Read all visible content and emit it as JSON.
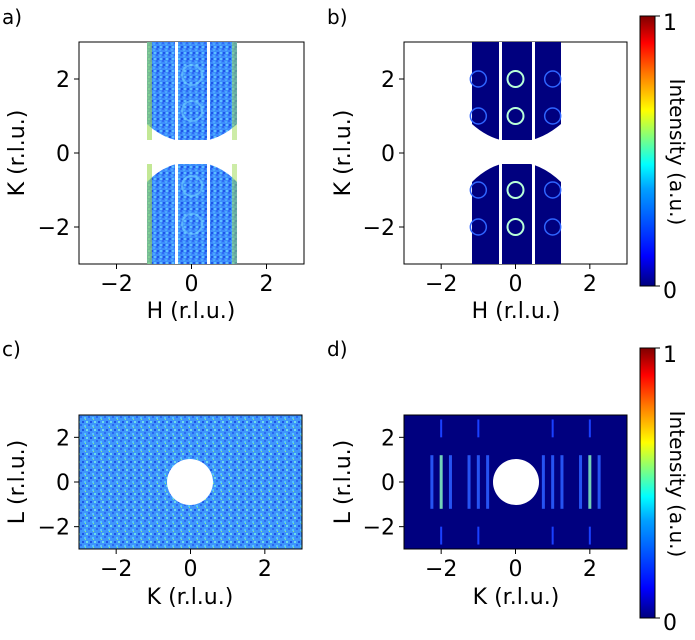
{
  "figure": {
    "colormap": "jet",
    "colormap_stops": [
      "#00007f",
      "#0000ff",
      "#007fff",
      "#00ffff",
      "#7fff7f",
      "#ffff00",
      "#ff7f00",
      "#ff0000",
      "#7f0000"
    ]
  },
  "chart_data": [
    {
      "panel_label": "a)",
      "type": "heatmap",
      "title": "",
      "xlabel": "H (r.l.u.)",
      "ylabel": "K (r.l.u.)",
      "xlim": [
        -3,
        3
      ],
      "ylim": [
        -3,
        3
      ],
      "xticks": [
        -2,
        0,
        2
      ],
      "yticks": [
        -2,
        0,
        2
      ],
      "x_tick_labels": [
        "−2",
        "0",
        "2"
      ],
      "y_tick_labels": [
        "−2",
        "0",
        "2"
      ],
      "data_region_h": [
        -1.2,
        1.2
      ],
      "description": "measured intensity, mostly low-medium (blue/cyan) with noise; gaps (white) near K=0"
    },
    {
      "panel_label": "b)",
      "type": "heatmap",
      "title": "",
      "xlabel": "H (r.l.u.)",
      "ylabel": "K (r.l.u.)",
      "xlim": [
        -3,
        3
      ],
      "ylim": [
        -3,
        3
      ],
      "xticks": [
        -2,
        0,
        2
      ],
      "yticks": [
        -2,
        0,
        2
      ],
      "x_tick_labels": [
        "−2",
        "0",
        "2"
      ],
      "y_tick_labels": [
        "−2",
        "0",
        "2"
      ],
      "data_region_h": [
        -1.2,
        1.2
      ],
      "ring_centers": [
        [
          -1,
          2
        ],
        [
          0,
          2
        ],
        [
          1,
          2
        ],
        [
          -1,
          1
        ],
        [
          0,
          1
        ],
        [
          1,
          1
        ],
        [
          -1,
          -1
        ],
        [
          0,
          -1
        ],
        [
          1,
          -1
        ],
        [
          -1,
          -2
        ],
        [
          0,
          -2
        ],
        [
          1,
          -2
        ]
      ],
      "description": "calculated intensity, dark blue background with ring features"
    },
    {
      "panel_label": "c)",
      "type": "heatmap",
      "title": "",
      "xlabel": "K (r.l.u.)",
      "ylabel": "L (r.l.u.)",
      "xlim": [
        -3,
        3
      ],
      "ylim": [
        -3,
        3
      ],
      "xticks": [
        -2,
        0,
        2
      ],
      "yticks": [
        -2,
        0,
        2
      ],
      "x_tick_labels": [
        "−2",
        "0",
        "2"
      ],
      "y_tick_labels": [
        "−2",
        "0",
        "2"
      ],
      "central_hole": [
        0,
        0
      ],
      "description": "measured intensity, noisy blue/cyan/green with central white hole"
    },
    {
      "panel_label": "d)",
      "type": "heatmap",
      "title": "",
      "xlabel": "K (r.l.u.)",
      "ylabel": "L (r.l.u.)",
      "xlim": [
        -3,
        3
      ],
      "ylim": [
        -3,
        3
      ],
      "xticks": [
        -2,
        0,
        2
      ],
      "yticks": [
        -2,
        0,
        2
      ],
      "x_tick_labels": [
        "−2",
        "0",
        "2"
      ],
      "y_tick_labels": [
        "−2",
        "0",
        "2"
      ],
      "central_hole": [
        0,
        0
      ],
      "rod_positions_k": [
        -2,
        -1,
        1,
        2
      ],
      "description": "calculated intensity, dark blue with vertical rods near K=±2, ±1"
    }
  ],
  "colorbars": [
    {
      "label": "Intensity (a.u.)",
      "ticks": [
        "0",
        "1"
      ]
    },
    {
      "label": "Intensity (a.u.)",
      "ticks": [
        "0",
        "1"
      ]
    }
  ]
}
